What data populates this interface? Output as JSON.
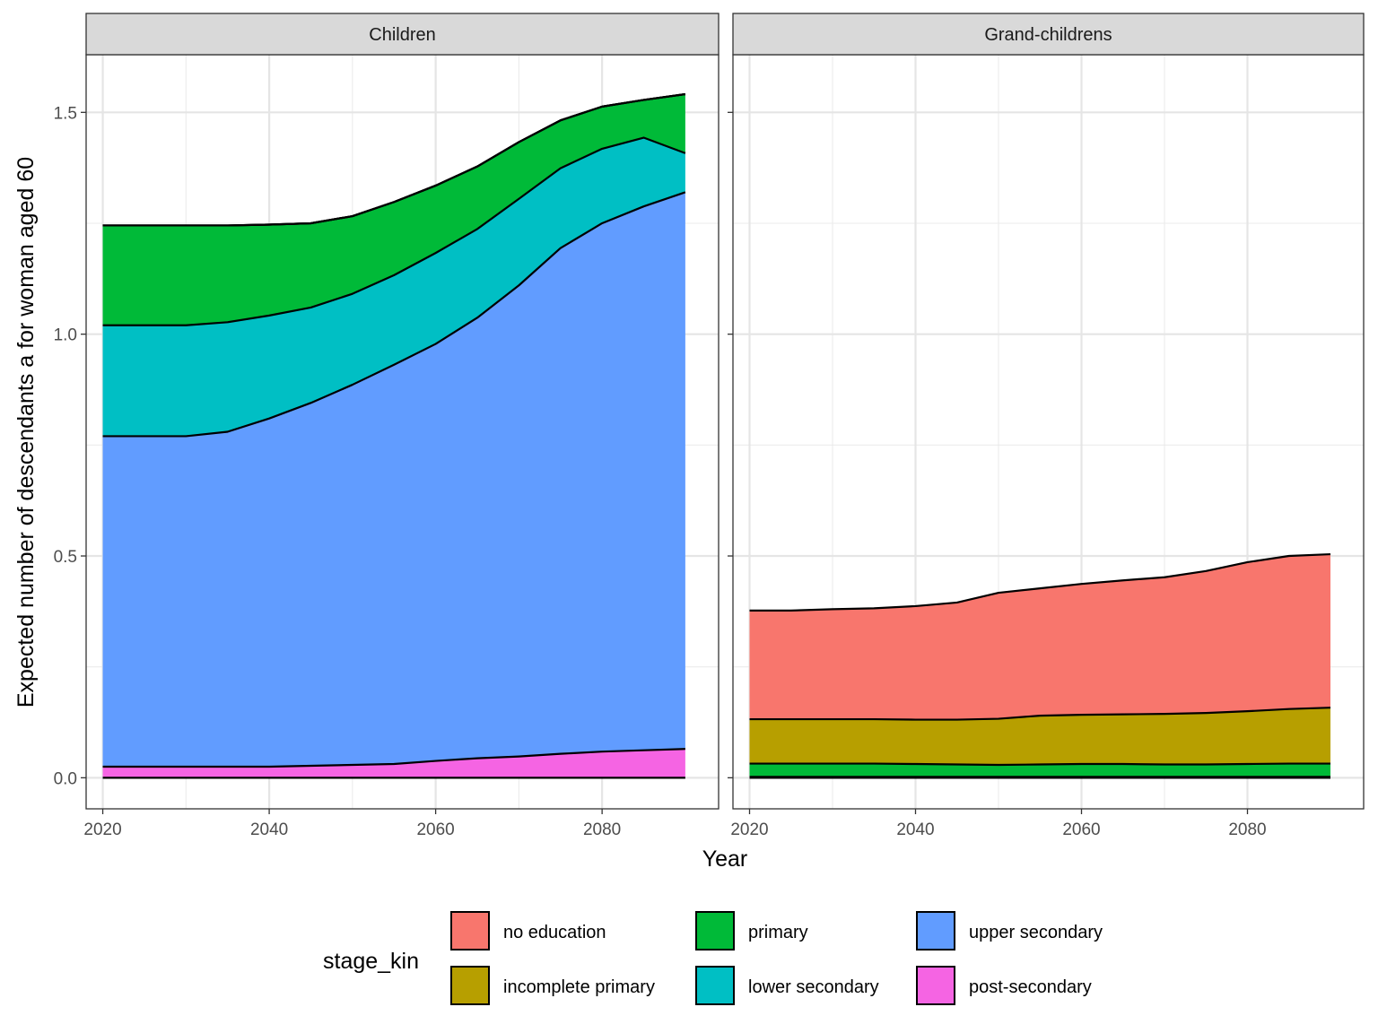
{
  "chart_data": {
    "type": "area",
    "stacked": true,
    "ylabel": "Expected number of descendants a for woman aged 60",
    "xlabel": "Year",
    "xlim": [
      2018,
      2094
    ],
    "ylim": [
      -0.07,
      1.63
    ],
    "x_ticks": [
      2020,
      2040,
      2060,
      2080
    ],
    "y_ticks": [
      0.0,
      0.5,
      1.0,
      1.5
    ],
    "y_tick_labels": [
      "0.0",
      "0.5",
      "1.0",
      "1.5"
    ],
    "grid": true,
    "legend": {
      "title": "stage_kin",
      "position": "bottom",
      "entries": [
        {
          "label": "no education",
          "color": "#F8766D"
        },
        {
          "label": "incomplete primary",
          "color": "#B79F00"
        },
        {
          "label": "primary",
          "color": "#00BA38"
        },
        {
          "label": "lower secondary",
          "color": "#00BFC4"
        },
        {
          "label": "upper secondary",
          "color": "#619CFF"
        },
        {
          "label": "post-secondary",
          "color": "#F564E3"
        }
      ]
    },
    "panels": [
      {
        "strip": "Children",
        "x": [
          2020,
          2025,
          2030,
          2035,
          2040,
          2045,
          2050,
          2055,
          2060,
          2065,
          2070,
          2075,
          2080,
          2085,
          2090
        ],
        "series": [
          {
            "name": "post-secondary",
            "color": "#F564E3",
            "values": [
              0.025,
              0.025,
              0.025,
              0.025,
              0.025,
              0.027,
              0.029,
              0.031,
              0.038,
              0.044,
              0.048,
              0.054,
              0.059,
              0.062,
              0.065
            ]
          },
          {
            "name": "upper secondary",
            "color": "#619CFF",
            "values": [
              0.745,
              0.745,
              0.745,
              0.755,
              0.785,
              0.818,
              0.857,
              0.9,
              0.94,
              0.993,
              1.062,
              1.14,
              1.191,
              1.226,
              1.255
            ]
          },
          {
            "name": "lower secondary",
            "color": "#00BFC4",
            "values": [
              0.25,
              0.25,
              0.25,
              0.247,
              0.232,
              0.215,
              0.205,
              0.202,
              0.205,
              0.2,
              0.195,
              0.18,
              0.168,
              0.155,
              0.088
            ]
          },
          {
            "name": "primary",
            "color": "#00BA38",
            "values": [
              0.225,
              0.225,
              0.225,
              0.218,
              0.205,
              0.19,
              0.175,
              0.165,
              0.152,
              0.141,
              0.128,
              0.108,
              0.095,
              0.085,
              0.133
            ]
          },
          {
            "name": "incomplete primary",
            "color": "#B79F00",
            "values": [
              0,
              0,
              0,
              0,
              0,
              0,
              0,
              0,
              0,
              0,
              0,
              0,
              0,
              0,
              0
            ]
          },
          {
            "name": "no education",
            "color": "#F8766D",
            "values": [
              0,
              0,
              0,
              0,
              0,
              0,
              0,
              0,
              0,
              0,
              0,
              0,
              0,
              0,
              0
            ]
          }
        ]
      },
      {
        "strip": "Grand-childrens",
        "x": [
          2020,
          2025,
          2030,
          2035,
          2040,
          2045,
          2050,
          2055,
          2060,
          2065,
          2070,
          2075,
          2080,
          2085,
          2090
        ],
        "series": [
          {
            "name": "post-secondary",
            "color": "#F564E3",
            "values": [
              0,
              0,
              0,
              0,
              0,
              0,
              0,
              0,
              0,
              0,
              0,
              0,
              0,
              0,
              0
            ]
          },
          {
            "name": "upper secondary",
            "color": "#619CFF",
            "values": [
              0,
              0,
              0,
              0,
              0,
              0,
              0,
              0,
              0,
              0,
              0,
              0,
              0,
              0,
              0
            ]
          },
          {
            "name": "lower secondary",
            "color": "#00BFC4",
            "values": [
              0.002,
              0.002,
              0.002,
              0.002,
              0.002,
              0.002,
              0.002,
              0.002,
              0.002,
              0.002,
              0.002,
              0.002,
              0.002,
              0.002,
              0.002
            ]
          },
          {
            "name": "primary",
            "color": "#00BA38",
            "values": [
              0.03,
              0.03,
              0.03,
              0.03,
              0.029,
              0.028,
              0.027,
              0.028,
              0.029,
              0.029,
              0.028,
              0.028,
              0.029,
              0.03,
              0.03
            ]
          },
          {
            "name": "incomplete primary",
            "color": "#B79F00",
            "values": [
              0.1,
              0.1,
              0.1,
              0.1,
              0.1,
              0.101,
              0.104,
              0.11,
              0.111,
              0.112,
              0.114,
              0.116,
              0.119,
              0.123,
              0.126
            ]
          },
          {
            "name": "no education",
            "color": "#F8766D",
            "values": [
              0.245,
              0.245,
              0.248,
              0.25,
              0.256,
              0.264,
              0.284,
              0.287,
              0.295,
              0.302,
              0.308,
              0.32,
              0.336,
              0.345,
              0.346
            ]
          }
        ]
      }
    ]
  }
}
